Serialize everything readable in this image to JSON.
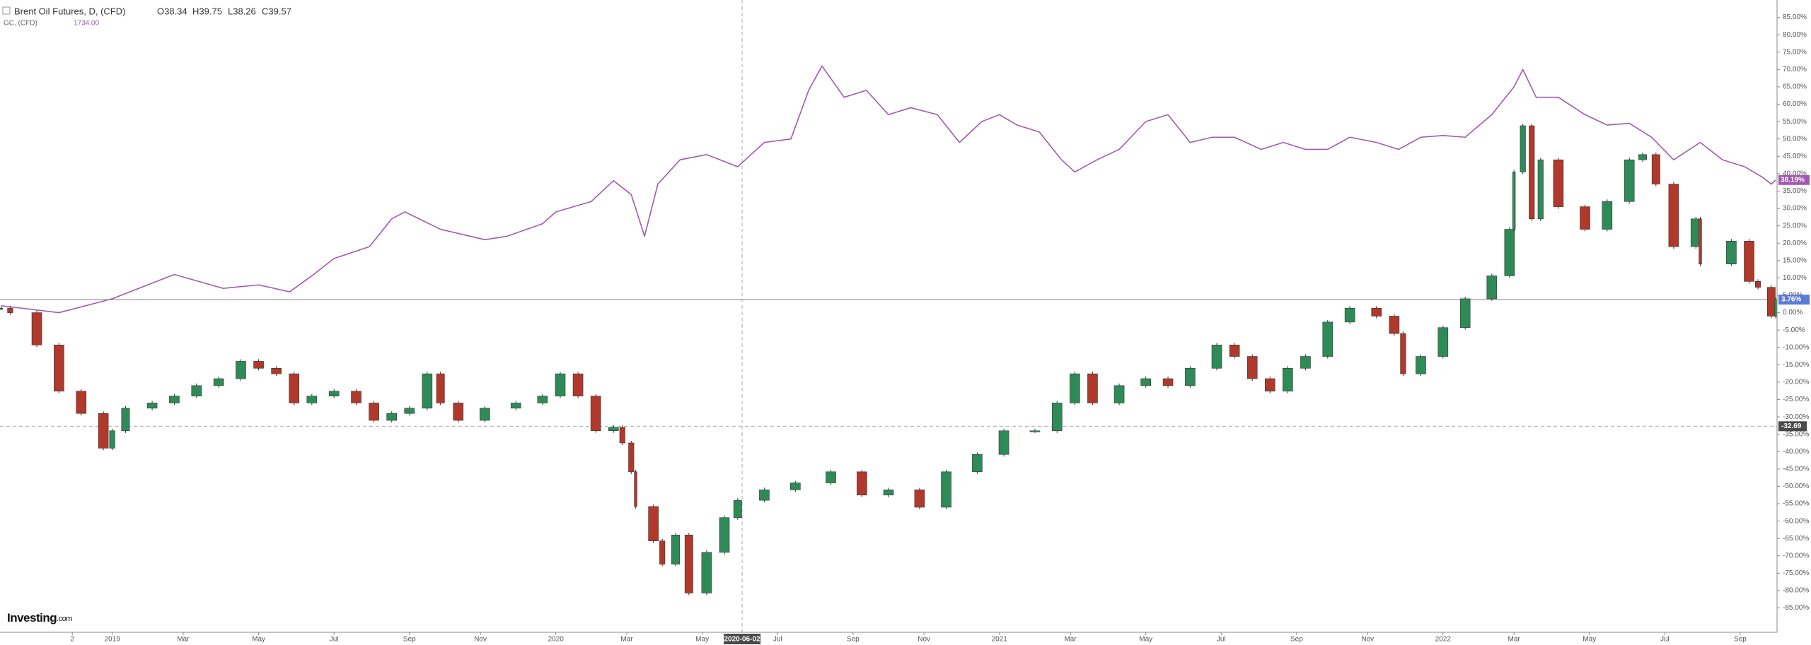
{
  "header": {
    "gold_price": "1734.00",
    "ohlc": [
      "O38.34",
      "H39.75",
      "L38.26",
      "C39.57"
    ]
  },
  "logo": [
    "Investing",
    ".com"
  ],
  "chart_data": {
    "type": "line",
    "xlim": [
      2018.747,
      2022.753
    ],
    "ylim": [
      -92,
      90
    ],
    "grid": false,
    "xticks": [
      {
        "value": 2018.91,
        "label": "2"
      },
      2019,
      {
        "value": 2019.16,
        "label": "Mar"
      },
      {
        "value": 2019.33,
        "label": "May"
      },
      {
        "value": 2019.5,
        "label": "Jul"
      },
      {
        "value": 2019.67,
        "label": "Sep"
      },
      {
        "value": 2019.83,
        "label": "Nov"
      },
      2020,
      {
        "value": 2020.16,
        "label": "Mar"
      },
      {
        "value": 2020.33,
        "label": "May"
      },
      {
        "value": 2020.5,
        "label": "Jul"
      },
      {
        "value": 2020.67,
        "label": "Sep"
      },
      {
        "value": 2020.83,
        "label": "Nov"
      },
      2021,
      {
        "value": 2021.16,
        "label": "Mar"
      },
      {
        "value": 2021.33,
        "label": "May"
      },
      {
        "value": 2021.5,
        "label": "Jul"
      },
      {
        "value": 2021.67,
        "label": "Sep"
      },
      {
        "value": 2021.83,
        "label": "Nov"
      },
      2022,
      {
        "value": 2022.16,
        "label": "Mar"
      },
      {
        "value": 2022.33,
        "label": "May"
      },
      {
        "value": 2022.5,
        "label": "Jul"
      },
      {
        "value": 2022.67,
        "label": "Sep"
      }
    ],
    "yticks": [
      {
        "value": 85,
        "label": "85.00%"
      },
      {
        "value": 80,
        "label": "80.00%"
      },
      {
        "value": 75,
        "label": "75.00%"
      },
      {
        "value": 70,
        "label": "70.00%"
      },
      {
        "value": 65,
        "label": "65.00%"
      },
      {
        "value": 60,
        "label": "60.00%"
      },
      {
        "value": 55,
        "label": "55.00%"
      },
      {
        "value": 50,
        "label": "50.00%"
      },
      {
        "value": 45,
        "label": "45.00%"
      },
      {
        "value": 40,
        "label": "40.00%"
      },
      {
        "value": 35,
        "label": "35.00%"
      },
      {
        "value": 30,
        "label": "30.00%"
      },
      {
        "value": 25,
        "label": "25.00%"
      },
      {
        "value": 20,
        "label": "20.00%"
      },
      {
        "value": 15,
        "label": "15.00%"
      },
      {
        "value": 10,
        "label": "10.00%"
      },
      {
        "value": 5,
        "label": "5.00%"
      },
      {
        "value": 0,
        "label": "0.00%"
      },
      {
        "value": -5,
        "label": "-5.00%"
      },
      {
        "value": -10,
        "label": "-10.00%"
      },
      {
        "value": -15,
        "label": "-15.00%"
      },
      {
        "value": -20,
        "label": "-20.00%"
      },
      {
        "value": -25,
        "label": "-25.00%"
      },
      {
        "value": -30,
        "label": "-30.00%"
      },
      {
        "value": -35,
        "label": "-35.00%"
      },
      {
        "value": -40,
        "label": "-40.00%"
      },
      {
        "value": -45,
        "label": "-45.00%"
      },
      {
        "value": -50,
        "label": "-50.00%"
      },
      {
        "value": -55,
        "label": "-55.00%"
      },
      {
        "value": -60,
        "label": "-60.00%"
      },
      {
        "value": -65,
        "label": "-65.00%"
      },
      {
        "value": -70,
        "label": "-70.00%"
      },
      {
        "value": -75,
        "label": "-75.00%"
      },
      {
        "value": -80,
        "label": "-80.00%"
      },
      {
        "value": -85,
        "label": "-85.00%"
      }
    ],
    "price_line": {
      "value": 3.76,
      "label": "3.76%",
      "color": "#5b7bd5"
    },
    "crosshair": {
      "x": 2020.42,
      "x_label": "2020-06-02",
      "y": -32.69
    },
    "series": [
      {
        "name": "GC, (CFD)",
        "color": "#a259b0",
        "style": "line",
        "last_value_label": "38.19%",
        "x": [
          2018.75,
          2018.88,
          2019.0,
          2019.14,
          2019.25,
          2019.33,
          2019.4,
          2019.45,
          2019.5,
          2019.58,
          2019.63,
          2019.66,
          2019.74,
          2019.84,
          2019.89,
          2019.97,
          2020.0,
          2020.08,
          2020.13,
          2020.17,
          2020.2,
          2020.23,
          2020.28,
          2020.34,
          2020.41,
          2020.47,
          2020.53,
          2020.57,
          2020.6,
          2020.65,
          2020.7,
          2020.75,
          2020.8,
          2020.86,
          2020.91,
          2020.96,
          2021.0,
          2021.04,
          2021.09,
          2021.14,
          2021.17,
          2021.22,
          2021.27,
          2021.33,
          2021.38,
          2021.43,
          2021.48,
          2021.53,
          2021.59,
          2021.64,
          2021.69,
          2021.74,
          2021.79,
          2021.85,
          2021.9,
          2021.95,
          2022.0,
          2022.05,
          2022.11,
          2022.16,
          2022.18,
          2022.21,
          2022.26,
          2022.32,
          2022.37,
          2022.42,
          2022.47,
          2022.52,
          2022.58,
          2022.63,
          2022.68,
          2022.72,
          2022.74,
          2022.75
        ],
        "values": [
          2,
          0,
          4,
          11,
          7,
          8,
          6,
          10.6,
          15.6,
          19,
          27,
          29,
          24,
          21,
          22,
          25.6,
          29,
          32,
          38,
          34,
          22,
          37,
          44,
          45.5,
          42,
          49,
          50,
          64,
          71,
          62,
          64,
          57,
          59,
          57,
          49,
          55,
          57,
          54,
          52,
          44,
          40.5,
          44,
          47,
          55,
          57,
          49,
          50.5,
          50.5,
          47,
          49,
          47,
          47,
          50.5,
          49,
          47,
          50.5,
          51,
          50.5,
          57,
          65,
          70,
          62,
          62,
          57,
          54,
          54.5,
          50.5,
          44,
          49,
          44,
          42,
          39,
          37,
          38.19
        ]
      },
      {
        "name": "Brent Oil Futures, D, (CFD)",
        "style": "candle",
        "up_color": "#2e8b57",
        "down_color": "#b0392b",
        "x": [
          2018.75,
          2018.77,
          2018.83,
          2018.88,
          2018.93,
          2018.98,
          2019.0,
          2019.03,
          2019.09,
          2019.14,
          2019.19,
          2019.24,
          2019.29,
          2019.33,
          2019.37,
          2019.41,
          2019.45,
          2019.5,
          2019.55,
          2019.59,
          2019.63,
          2019.67,
          2019.71,
          2019.74,
          2019.78,
          2019.84,
          2019.91,
          2019.97,
          2020.01,
          2020.05,
          2020.09,
          2020.13,
          2020.15,
          2020.17,
          2020.18,
          2020.22,
          2020.24,
          2020.27,
          2020.3,
          2020.34,
          2020.38,
          2020.41,
          2020.47,
          2020.54,
          2020.62,
          2020.69,
          2020.75,
          2020.82,
          2020.88,
          2020.95,
          2021.01,
          2021.08,
          2021.13,
          2021.17,
          2021.21,
          2021.27,
          2021.33,
          2021.38,
          2021.43,
          2021.49,
          2021.53,
          2021.57,
          2021.61,
          2021.65,
          2021.69,
          2021.74,
          2021.79,
          2021.85,
          2021.89,
          2021.91,
          2021.95,
          2022.0,
          2022.05,
          2022.11,
          2022.15,
          2022.16,
          2022.18,
          2022.2,
          2022.22,
          2022.26,
          2022.32,
          2022.37,
          2022.42,
          2022.45,
          2022.48,
          2022.52,
          2022.57,
          2022.58,
          2022.65,
          2022.69,
          2022.71,
          2022.74,
          2022.75
        ],
        "values": [
          1.3,
          0,
          -9.3,
          -22.6,
          -29,
          -39,
          -34,
          -27.5,
          -26,
          -24,
          -21,
          -19,
          -14,
          -16,
          -17.6,
          -26,
          -24,
          -22.6,
          -26,
          -31,
          -29,
          -27.5,
          -17.6,
          -26,
          -31,
          -27.5,
          -26,
          -24,
          -17.6,
          -24,
          -34,
          -33,
          -37.5,
          -45.8,
          -55.8,
          -65.7,
          -72.4,
          -64,
          -80.7,
          -69,
          -59,
          -54,
          -51,
          -49,
          -45.8,
          -52.5,
          -51,
          -56,
          -45.8,
          -40.8,
          -34,
          -34,
          -26,
          -17.6,
          -26,
          -21,
          -19,
          -21,
          -16,
          -9.3,
          -12.6,
          -19,
          -22.6,
          -16,
          -12.6,
          -2.7,
          1.3,
          -1,
          -6,
          -17.6,
          -12.6,
          -4.3,
          4,
          10.6,
          24,
          40.5,
          53.8,
          27,
          44,
          30.5,
          24,
          32,
          44,
          45.5,
          37,
          19,
          27,
          14,
          20.6,
          9,
          7.3,
          -1,
          3.76
        ]
      }
    ]
  }
}
